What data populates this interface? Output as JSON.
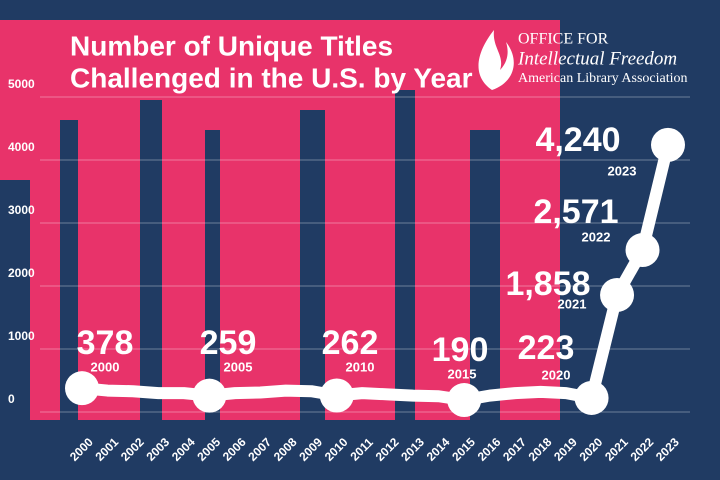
{
  "chart_data": {
    "type": "line",
    "title": [
      "Number of  Unique Titles",
      "Challenged in the U.S. by Year"
    ],
    "logo": {
      "line1": "OFFICE FOR",
      "line2": "Intellectual Freedom",
      "line3": "American Library Association"
    },
    "categories": [
      "2000",
      "2001",
      "2002",
      "2003",
      "2004",
      "2005",
      "2006",
      "2007",
      "2008",
      "2009",
      "2010",
      "2011",
      "2012",
      "2013",
      "2014",
      "2015",
      "2016",
      "2017",
      "2018",
      "2019",
      "2020",
      "2021",
      "2022",
      "2023"
    ],
    "values": [
      378,
      340,
      330,
      300,
      300,
      259,
      300,
      310,
      340,
      330,
      262,
      300,
      280,
      260,
      250,
      190,
      260,
      300,
      320,
      300,
      223,
      1858,
      2571,
      4240
    ],
    "value_labels": [
      "378",
      null,
      null,
      null,
      null,
      "259",
      null,
      null,
      null,
      null,
      "262",
      null,
      null,
      null,
      null,
      "190",
      null,
      null,
      null,
      null,
      "223",
      "1,858",
      "2,571",
      "4,240"
    ],
    "color": "#ffffff",
    "ylim": [
      0,
      5000
    ],
    "yticks": [
      0,
      1000,
      2000,
      3000,
      4000,
      5000
    ],
    "grid": true
  }
}
